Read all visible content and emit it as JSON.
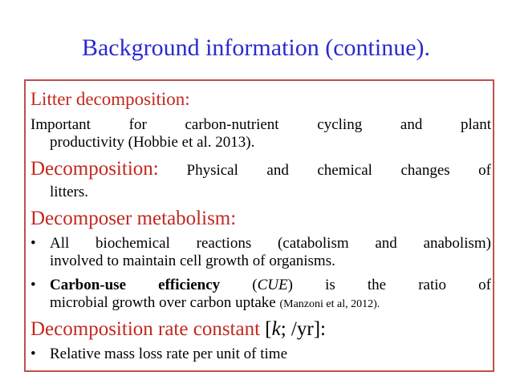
{
  "title": "Background information (continue).",
  "sections": {
    "litter": {
      "heading": "Litter decomposition:",
      "line1": "Important for carbon-nutrient cycling and plant",
      "line2": "productivity (Hobbie et al. 2013)."
    },
    "decomposition": {
      "heading": "Decomposition:",
      "line1_rest": "Physical and chemical changes of",
      "line2": "litters."
    },
    "metabolism": {
      "heading": "Decomposer metabolism:",
      "bullet1_line1": "All biochemical reactions (catabolism and anabolism)",
      "bullet1_line2": "involved to maintain cell growth of organisms.",
      "bullet2_bold": "Carbon-use efficiency",
      "bullet2_paren_open": "(",
      "bullet2_italic": "CUE",
      "bullet2_rest": ") is the ratio of",
      "bullet2_line2": "microbial growth over carbon uptake",
      "bullet2_citation": "(Manzoni et al, 2012)."
    },
    "rate": {
      "heading": "Decomposition rate constant",
      "bracket_open": "[",
      "symbol": "k",
      "unit": "; /yr]:",
      "bullet1": "Relative mass loss rate per unit of time"
    }
  },
  "bullet_char": "•",
  "colors": {
    "title": "#2a2ad0",
    "heading": "#c0291f",
    "border": "#c0504d"
  }
}
